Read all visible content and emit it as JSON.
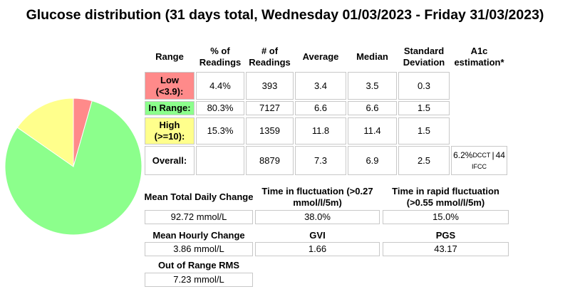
{
  "title": "Glucose distribution (31 days total, Wednesday 01/03/2023 - Friday 31/03/2023)",
  "chart_data": {
    "type": "pie",
    "values": [
      4.4,
      80.3,
      15.3
    ],
    "colors": [
      "#ff8a8a",
      "#8cff8c",
      "#ffff8c"
    ]
  },
  "table": {
    "headers": [
      "Range",
      "% of Readings",
      "# of Readings",
      "Average",
      "Median",
      "Standard Deviation",
      "A1c estimation*"
    ],
    "rows": [
      {
        "range": "Low (<3.9):",
        "color": "#ff8a8a",
        "percent": "4.4%",
        "count": "393",
        "average": "3.4",
        "median": "3.5",
        "sd": "0.3"
      },
      {
        "range": "In Range:",
        "color": "#8cff8c",
        "percent": "80.3%",
        "count": "7127",
        "average": "6.6",
        "median": "6.6",
        "sd": "1.5"
      },
      {
        "range": "High (>=10):",
        "color": "#ffff8c",
        "percent": "15.3%",
        "count": "1359",
        "average": "11.8",
        "median": "11.4",
        "sd": "1.5"
      },
      {
        "range": "Overall:",
        "count": "8879",
        "average": "7.3",
        "median": "6.9",
        "sd": "2.5",
        "a1c": {
          "dcct": "6.2%",
          "dcct_sub": "DCCT",
          "separator": "|",
          "ifcc": "44",
          "ifcc_sub": "IFCC"
        }
      }
    ]
  },
  "stats": [
    {
      "label": "Mean Total Daily Change",
      "value": "92.72 mmol/L"
    },
    {
      "label": "Time in fluctuation (>0.27 mmol/l/5m)",
      "value": "38.0%"
    },
    {
      "label": "Time in rapid fluctuation (>0.55 mmol/l/5m)",
      "value": "15.0%"
    },
    {
      "label": "Mean Hourly Change",
      "value": "3.86 mmol/L"
    },
    {
      "label": "GVI",
      "value": "1.66"
    },
    {
      "label": "PGS",
      "value": "43.17"
    },
    {
      "label": "Out of Range RMS",
      "value": "7.23 mmol/L"
    }
  ]
}
